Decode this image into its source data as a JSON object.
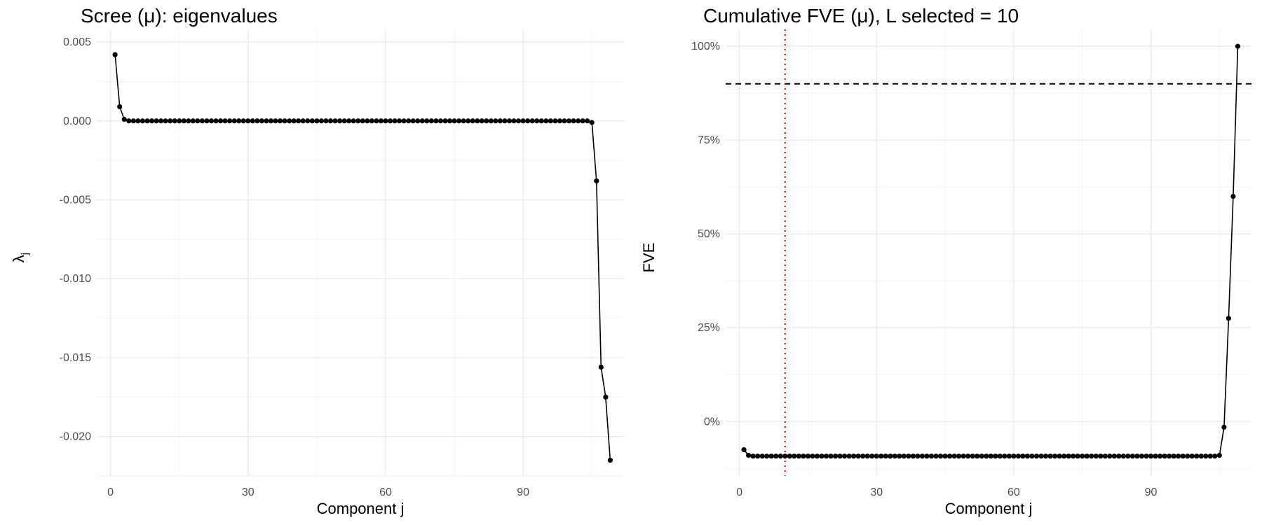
{
  "chart_data": [
    {
      "type": "line",
      "title": "Scree (μ): eigenvalues",
      "xlabel": "Component j",
      "ylabel": "λj",
      "ylabel_main": "λ",
      "ylabel_sub": "j",
      "xlim": [
        -3,
        112
      ],
      "ylim": [
        -0.0225,
        0.0058
      ],
      "x_ticks": [
        0,
        30,
        60,
        90
      ],
      "x_tick_labels": [
        "0",
        "30",
        "60",
        "90"
      ],
      "y_ticks": [
        0.005,
        0.0,
        -0.005,
        -0.01,
        -0.015,
        -0.02
      ],
      "y_tick_labels": [
        "0.005",
        "0.000",
        "-0.005",
        "-0.010",
        "-0.015",
        "-0.020"
      ],
      "grid": true,
      "series": [
        {
          "x": [
            1,
            2,
            3,
            4,
            5,
            6,
            7,
            8,
            9,
            10,
            11,
            12,
            13,
            14,
            15,
            16,
            17,
            18,
            19,
            20,
            21,
            22,
            23,
            24,
            25,
            26,
            27,
            28,
            29,
            30,
            31,
            32,
            33,
            34,
            35,
            36,
            37,
            38,
            39,
            40,
            41,
            42,
            43,
            44,
            45,
            46,
            47,
            48,
            49,
            50,
            51,
            52,
            53,
            54,
            55,
            56,
            57,
            58,
            59,
            60,
            61,
            62,
            63,
            64,
            65,
            66,
            67,
            68,
            69,
            70,
            71,
            72,
            73,
            74,
            75,
            76,
            77,
            78,
            79,
            80,
            81,
            82,
            83,
            84,
            85,
            86,
            87,
            88,
            89,
            90,
            91,
            92,
            93,
            94,
            95,
            96,
            97,
            98,
            99,
            100,
            101,
            102,
            103,
            104,
            105,
            106,
            107,
            108,
            109
          ],
          "values": [
            0.0042,
            0.0009,
            0.0001,
            0.0,
            0.0,
            0.0,
            0.0,
            0.0,
            0.0,
            0.0,
            0.0,
            0.0,
            0.0,
            0.0,
            0.0,
            0.0,
            0.0,
            0.0,
            0.0,
            0.0,
            0.0,
            0.0,
            0.0,
            0.0,
            0.0,
            0.0,
            0.0,
            0.0,
            0.0,
            0.0,
            0.0,
            0.0,
            0.0,
            0.0,
            0.0,
            0.0,
            0.0,
            0.0,
            0.0,
            0.0,
            0.0,
            0.0,
            0.0,
            0.0,
            0.0,
            0.0,
            0.0,
            0.0,
            0.0,
            0.0,
            0.0,
            0.0,
            0.0,
            0.0,
            0.0,
            0.0,
            0.0,
            0.0,
            0.0,
            0.0,
            0.0,
            0.0,
            0.0,
            0.0,
            0.0,
            0.0,
            0.0,
            0.0,
            0.0,
            0.0,
            0.0,
            0.0,
            0.0,
            0.0,
            0.0,
            0.0,
            0.0,
            0.0,
            0.0,
            0.0,
            0.0,
            0.0,
            0.0,
            0.0,
            0.0,
            0.0,
            0.0,
            0.0,
            0.0,
            0.0,
            0.0,
            0.0,
            0.0,
            0.0,
            0.0,
            0.0,
            0.0,
            0.0,
            0.0,
            0.0,
            0.0,
            0.0,
            0.0,
            0.0,
            -0.0001,
            -0.0038,
            -0.0156,
            -0.0175,
            -0.0215
          ]
        }
      ],
      "reference_lines": []
    },
    {
      "type": "line",
      "title": "Cumulative FVE (μ), L selected = 10",
      "xlabel": "Component j",
      "ylabel": "FVE",
      "xlim": [
        -3,
        112
      ],
      "ylim": [
        -0.145,
        1.045
      ],
      "x_ticks": [
        0,
        30,
        60,
        90
      ],
      "x_tick_labels": [
        "0",
        "30",
        "60",
        "90"
      ],
      "y_ticks": [
        1.0,
        0.75,
        0.5,
        0.25,
        0.0
      ],
      "y_tick_labels": [
        "100%",
        "75%",
        "50%",
        "25%",
        "0%"
      ],
      "grid": true,
      "series": [
        {
          "x": [
            1,
            2,
            3,
            4,
            5,
            6,
            7,
            8,
            9,
            10,
            11,
            12,
            13,
            14,
            15,
            16,
            17,
            18,
            19,
            20,
            21,
            22,
            23,
            24,
            25,
            26,
            27,
            28,
            29,
            30,
            31,
            32,
            33,
            34,
            35,
            36,
            37,
            38,
            39,
            40,
            41,
            42,
            43,
            44,
            45,
            46,
            47,
            48,
            49,
            50,
            51,
            52,
            53,
            54,
            55,
            56,
            57,
            58,
            59,
            60,
            61,
            62,
            63,
            64,
            65,
            66,
            67,
            68,
            69,
            70,
            71,
            72,
            73,
            74,
            75,
            76,
            77,
            78,
            79,
            80,
            81,
            82,
            83,
            84,
            85,
            86,
            87,
            88,
            89,
            90,
            91,
            92,
            93,
            94,
            95,
            96,
            97,
            98,
            99,
            100,
            101,
            102,
            103,
            104,
            105,
            106,
            107,
            108,
            109
          ],
          "values": [
            -0.075,
            -0.09,
            -0.092,
            -0.092,
            -0.092,
            -0.092,
            -0.092,
            -0.092,
            -0.092,
            -0.092,
            -0.092,
            -0.092,
            -0.092,
            -0.092,
            -0.092,
            -0.092,
            -0.092,
            -0.092,
            -0.092,
            -0.092,
            -0.092,
            -0.092,
            -0.092,
            -0.092,
            -0.092,
            -0.092,
            -0.092,
            -0.092,
            -0.092,
            -0.092,
            -0.092,
            -0.092,
            -0.092,
            -0.092,
            -0.092,
            -0.092,
            -0.092,
            -0.092,
            -0.092,
            -0.092,
            -0.092,
            -0.092,
            -0.092,
            -0.092,
            -0.092,
            -0.092,
            -0.092,
            -0.092,
            -0.092,
            -0.092,
            -0.092,
            -0.092,
            -0.092,
            -0.092,
            -0.092,
            -0.092,
            -0.092,
            -0.092,
            -0.092,
            -0.092,
            -0.092,
            -0.092,
            -0.092,
            -0.092,
            -0.092,
            -0.092,
            -0.092,
            -0.092,
            -0.092,
            -0.092,
            -0.092,
            -0.092,
            -0.092,
            -0.092,
            -0.092,
            -0.092,
            -0.092,
            -0.092,
            -0.092,
            -0.092,
            -0.092,
            -0.092,
            -0.092,
            -0.092,
            -0.092,
            -0.092,
            -0.092,
            -0.092,
            -0.092,
            -0.092,
            -0.092,
            -0.092,
            -0.092,
            -0.092,
            -0.092,
            -0.092,
            -0.092,
            -0.092,
            -0.092,
            -0.092,
            -0.092,
            -0.092,
            -0.092,
            -0.092,
            -0.09,
            -0.015,
            0.275,
            0.6,
            1.0
          ]
        }
      ],
      "reference_lines": [
        {
          "orientation": "horizontal",
          "value": 0.9,
          "style": "dashed",
          "color": "#000000"
        },
        {
          "orientation": "vertical",
          "value": 10,
          "style": "dotted",
          "color": "#cc0000"
        }
      ]
    }
  ]
}
